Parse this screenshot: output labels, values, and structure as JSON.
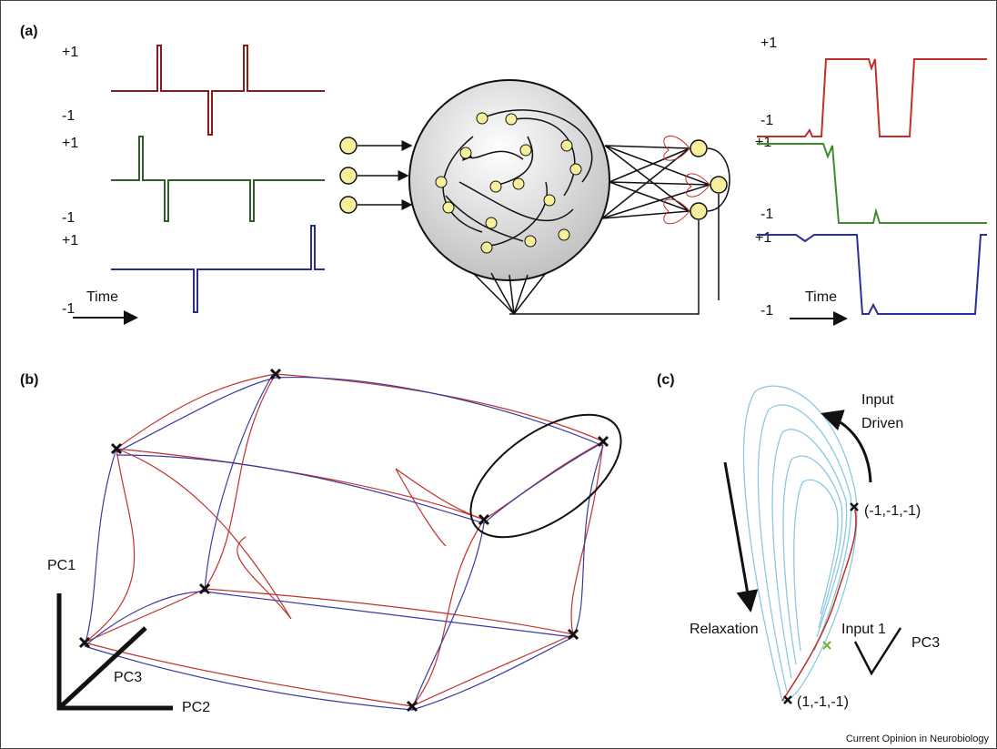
{
  "panels": {
    "a": {
      "label": "(a)",
      "input_traces": [
        {
          "high": "+1",
          "low": "-1"
        },
        {
          "high": "+1",
          "low": "-1"
        },
        {
          "high": "+1",
          "low": "-1"
        }
      ],
      "input_time": "Time",
      "output_traces": [
        {
          "high": "+1",
          "low": "-1"
        },
        {
          "high": "+1",
          "low": "-1"
        },
        {
          "high": "+1",
          "low": "-1"
        }
      ],
      "output_time": "Time"
    },
    "b": {
      "label": "(b)",
      "axes": [
        "PC1",
        "PC3",
        "PC2"
      ]
    },
    "c": {
      "label": "(c)",
      "input_driven": [
        "Input",
        "Driven"
      ],
      "fixed_point_top": "(-1,-1,-1)",
      "relaxation": "Relaxation",
      "input_1": "Input 1",
      "axis": "PC3",
      "fixed_point_bottom": "(1,-1,-1)"
    }
  },
  "footer": {
    "credit": "Current Opinion in Neurobiology"
  }
}
